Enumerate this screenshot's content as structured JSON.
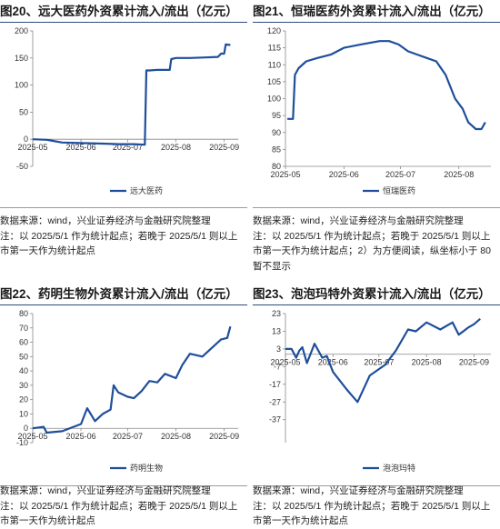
{
  "colors": {
    "series": "#1f4e9c",
    "rule": "#2d4a7a"
  },
  "chart_data": [
    {
      "type": "line",
      "title": "图20、远大医药外资累计流入/流出（亿元）",
      "xlabel": "",
      "ylabel": "",
      "xlim": [
        "2025-05-01",
        "2025-09-10"
      ],
      "ylim": [
        -50,
        200
      ],
      "yticks": [
        -50,
        0,
        50,
        100,
        150,
        200
      ],
      "xticks": [
        "2025-05",
        "2025-06",
        "2025-07",
        "2025-08",
        "2025-09"
      ],
      "series": [
        {
          "name": "远大医药",
          "x": [
            "2025-05-01",
            "2025-05-10",
            "2025-05-14",
            "2025-05-20",
            "2025-06-01",
            "2025-06-15",
            "2025-06-25",
            "2025-07-05",
            "2025-07-12",
            "2025-07-13",
            "2025-07-15",
            "2025-07-20",
            "2025-07-28",
            "2025-07-29",
            "2025-08-01",
            "2025-08-10",
            "2025-08-20",
            "2025-08-28",
            "2025-08-30",
            "2025-09-01",
            "2025-09-02",
            "2025-09-05"
          ],
          "y": [
            0,
            -1,
            -3,
            -6,
            -7,
            -8,
            -9,
            -9,
            -10,
            127,
            127,
            128,
            128,
            148,
            150,
            150,
            151,
            152,
            158,
            158,
            175,
            174
          ]
        }
      ],
      "legend": "bottom-center"
    },
    {
      "type": "line",
      "title": "图21、恒瑞医药外资累计流入/流出（亿元）",
      "xlabel": "",
      "ylabel": "",
      "xlim": [
        "2025-05-01",
        "2025-08-18"
      ],
      "ylim": [
        80,
        120
      ],
      "yticks": [
        80,
        85,
        90,
        95,
        100,
        105,
        110,
        115,
        120
      ],
      "xticks": [
        "2025-05",
        "2025-06",
        "2025-07",
        "2025-08"
      ],
      "series": [
        {
          "name": "恒瑞医药",
          "x": [
            "2025-05-02",
            "2025-05-03",
            "2025-05-05",
            "2025-05-06",
            "2025-05-08",
            "2025-05-12",
            "2025-05-18",
            "2025-05-25",
            "2025-06-01",
            "2025-06-10",
            "2025-06-20",
            "2025-06-25",
            "2025-06-30",
            "2025-07-05",
            "2025-07-10",
            "2025-07-15",
            "2025-07-20",
            "2025-07-25",
            "2025-07-30",
            "2025-08-03",
            "2025-08-06",
            "2025-08-10",
            "2025-08-13",
            "2025-08-15"
          ],
          "y": [
            94,
            94,
            94,
            107,
            109,
            111,
            112,
            113,
            115,
            116,
            117,
            117,
            116,
            114,
            113,
            112,
            111,
            107,
            100,
            97,
            93,
            91,
            91,
            93
          ]
        }
      ],
      "legend": "bottom-center"
    },
    {
      "type": "line",
      "title": "图22、药明生物外资累计流入/流出（亿元）",
      "xlabel": "",
      "ylabel": "",
      "xlim": [
        "2025-05-01",
        "2025-09-10"
      ],
      "ylim": [
        -10,
        80
      ],
      "yticks": [
        -10,
        0,
        10,
        20,
        30,
        40,
        50,
        60,
        70,
        80
      ],
      "xticks": [
        "2025-05",
        "2025-06",
        "2025-07",
        "2025-08",
        "2025-09"
      ],
      "series": [
        {
          "name": "药明生物",
          "x": [
            "2025-05-01",
            "2025-05-08",
            "2025-05-10",
            "2025-05-20",
            "2025-06-01",
            "2025-06-05",
            "2025-06-10",
            "2025-06-15",
            "2025-06-20",
            "2025-06-22",
            "2025-06-25",
            "2025-07-01",
            "2025-07-05",
            "2025-07-10",
            "2025-07-15",
            "2025-07-20",
            "2025-07-25",
            "2025-08-01",
            "2025-08-05",
            "2025-08-10",
            "2025-08-18",
            "2025-08-25",
            "2025-08-30",
            "2025-09-03",
            "2025-09-05"
          ],
          "y": [
            0,
            1,
            -3,
            -2,
            3,
            14,
            5,
            10,
            13,
            30,
            25,
            22,
            21,
            26,
            33,
            32,
            38,
            35,
            44,
            52,
            50,
            57,
            62,
            63,
            71
          ]
        }
      ],
      "legend": "bottom-center"
    },
    {
      "type": "line",
      "title": "图23、泡泡玛特外资累计流入/流出（亿元）",
      "xlabel": "",
      "ylabel": "",
      "xlim": [
        "2025-05-01",
        "2025-09-12"
      ],
      "ylim": [
        -50,
        23
      ],
      "yticks": [
        -37,
        -27,
        -17,
        -7,
        3,
        13,
        23
      ],
      "xticks": [
        "2025-05",
        "2025-06",
        "2025-07",
        "2025-08",
        "2025-09"
      ],
      "series": [
        {
          "name": "泡泡玛特",
          "x": [
            "2025-05-01",
            "2025-05-05",
            "2025-05-08",
            "2025-05-10",
            "2025-05-12",
            "2025-05-15",
            "2025-05-20",
            "2025-05-25",
            "2025-05-28",
            "2025-06-01",
            "2025-06-10",
            "2025-06-17",
            "2025-06-25",
            "2025-07-05",
            "2025-07-12",
            "2025-07-20",
            "2025-07-25",
            "2025-08-01",
            "2025-08-10",
            "2025-08-18",
            "2025-08-22",
            "2025-08-28",
            "2025-09-01",
            "2025-09-05"
          ],
          "y": [
            3,
            3,
            -2,
            2,
            4,
            -5,
            6,
            -2,
            -1,
            -10,
            -20,
            -27,
            -12,
            -6,
            2,
            14,
            13,
            18,
            14,
            18,
            11,
            15,
            17,
            20
          ]
        }
      ],
      "legend": "bottom-center"
    }
  ],
  "notes": [
    [
      "数据来源：wind，兴业证券经济与金融研究院整理",
      "注：以 2025/5/1 作为统计起点；若晚于 2025/5/1 则以上",
      "市第一天作为统计起点"
    ],
    [
      "数据来源：wind，兴业证券经济与金融研究院整理",
      "注：以 2025/5/1 作为统计起点；若晚于 2025/5/1 则以上",
      "市第一天作为统计起点；2）为方便阅读，纵坐标小于 80",
      "暂不显示"
    ],
    [
      "数据来源：wind，兴业证券经济与金融研究院整理",
      "注：以 2025/5/1 作为统计起点；若晚于 2025/5/1 则以上",
      "市第一天作为统计起点"
    ],
    [
      "数据来源：wind，兴业证券经济与金融研究院整理",
      "注：以 2025/5/1 作为统计起点；若晚于 2025/5/1 则以上",
      "市第一天作为统计起点"
    ]
  ]
}
